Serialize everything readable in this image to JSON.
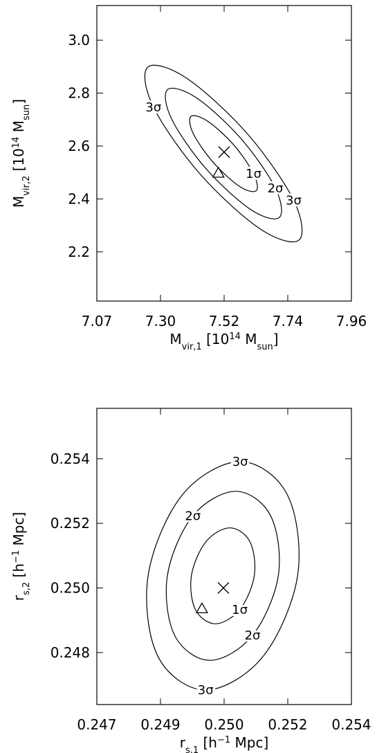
{
  "chart_data": [
    {
      "type": "contour",
      "xlabel": [
        {
          "text": "M"
        },
        {
          "text": "vir,1",
          "sub": true
        },
        {
          "text": "  [10"
        },
        {
          "text": "14",
          "sup": true
        },
        {
          "text": " M"
        },
        {
          "text": "sun",
          "sub": true
        },
        {
          "text": "]"
        }
      ],
      "ylabel": [
        {
          "text": "M"
        },
        {
          "text": "vir,2",
          "sub": true
        },
        {
          "text": "  [10"
        },
        {
          "text": "14",
          "sup": true
        },
        {
          "text": " M"
        },
        {
          "text": "sun",
          "sub": true
        },
        {
          "text": "]"
        }
      ],
      "xlim": [
        7.075,
        7.965
      ],
      "xticks": [
        {
          "value": 7.075,
          "label": "7.07"
        },
        {
          "value": 7.2975,
          "label": "7.30"
        },
        {
          "value": 7.52,
          "label": "7.52"
        },
        {
          "value": 7.7425,
          "label": "7.74"
        },
        {
          "value": 7.965,
          "label": "7.96"
        }
      ],
      "ylim": [
        2.014,
        3.131
      ],
      "yticks": [
        2.2,
        2.4,
        2.6,
        {
          "value": 2.8,
          "label": "2.8"
        },
        {
          "value": 3.0,
          "label": "3.0"
        }
      ],
      "color": "#000000",
      "best_fit": {
        "x": 7.52,
        "y": 2.577
      },
      "true_value": {
        "x": 7.5,
        "y": 2.498
      },
      "contours": [
        {
          "label": "1σ",
          "x": [
            7.632,
            7.573,
            7.482,
            7.412,
            7.404,
            7.462,
            7.553,
            7.623
          ],
          "y": [
            2.431,
            2.448,
            2.538,
            2.647,
            2.712,
            2.694,
            2.605,
            2.495
          ]
        },
        {
          "label": "2σ",
          "x": [
            7.713,
            7.613,
            7.457,
            7.337,
            7.322,
            7.422,
            7.578,
            7.699
          ],
          "y": [
            2.33,
            2.36,
            2.514,
            2.701,
            2.813,
            2.783,
            2.629,
            2.441
          ]
        },
        {
          "label": "3σ",
          "x": [
            7.782,
            7.647,
            7.436,
            7.273,
            7.253,
            7.388,
            7.599,
            7.763
          ],
          "y": [
            2.245,
            2.286,
            2.494,
            2.747,
            2.898,
            2.857,
            2.649,
            2.395
          ]
        }
      ]
    },
    {
      "type": "contour",
      "xlabel": [
        {
          "text": "r"
        },
        {
          "text": "s,1",
          "sub": true
        },
        {
          "text": "  [h"
        },
        {
          "text": "−1",
          "sup": true
        },
        {
          "text": "  Mpc]"
        }
      ],
      "ylabel": [
        {
          "text": "r"
        },
        {
          "text": "s,2",
          "sub": true
        },
        {
          "text": "  [h"
        },
        {
          "text": "−1",
          "sup": true
        },
        {
          "text": "  Mpc]"
        }
      ],
      "xlim": [
        0.247,
        0.254
      ],
      "xticks": [
        0.247,
        {
          "value": 0.24875,
          "label": "0.249"
        },
        {
          "value": 0.2505,
          "label": "0.250"
        },
        {
          "value": 0.25225,
          "label": "0.252"
        },
        0.254
      ],
      "ylim": [
        0.24639,
        0.25556
      ],
      "yticks": [
        0.248,
        {
          "value": 0.25,
          "label": "0.250"
        },
        0.252,
        0.254
      ],
      "color": "#000000",
      "best_fit": {
        "x": 0.25048,
        "y": 0.25
      },
      "true_value": {
        "x": 0.24989,
        "y": 0.24936
      },
      "contours": [
        {
          "label": "1σ",
          "x": [
            0.25133,
            0.25121,
            0.25066,
            0.25,
            0.2496,
            0.24971,
            0.25026,
            0.25093
          ],
          "y": [
            0.25038,
            0.25143,
            0.25186,
            0.25143,
            0.25038,
            0.24933,
            0.24889,
            0.24933
          ]
        },
        {
          "label": "2σ",
          "x": [
            0.25199,
            0.25178,
            0.25082,
            0.24964,
            0.24894,
            0.24914,
            0.25011,
            0.25128
          ],
          "y": [
            0.25038,
            0.25223,
            0.25299,
            0.25223,
            0.25038,
            0.24853,
            0.24776,
            0.24853
          ]
        },
        {
          "label": "3σ",
          "x": [
            0.25252,
            0.25224,
            0.25094,
            0.24935,
            0.24841,
            0.24868,
            0.24999,
            0.25157
          ],
          "y": [
            0.25038,
            0.25288,
            0.25391,
            0.25288,
            0.25038,
            0.24788,
            0.24684,
            0.24788
          ]
        }
      ]
    }
  ]
}
